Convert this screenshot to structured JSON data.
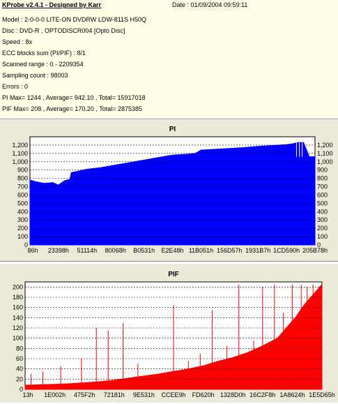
{
  "header": {
    "app_title": "KProbe v2.4.1 - Designed by Karr",
    "date_label": "Date : 01/09/2004 09:59:11",
    "lines": [
      "Model : 2-0-0-0 LITE-ON DVDRW LDW-811S   H50Q",
      "Disc : DVD-R , OPTODISCR004 [Opto Disc]",
      "Speed : 8x",
      "ECC blocks sum (PI/PIF) : 8/1",
      "Scanned range : 0 - 2209354",
      "Sampling count : 98003",
      "Errors : 0",
      "PI Max= 1244 , Average= 942.10 , Total= 15917018",
      "PIF Max= 208 , Average= 170.20 , Total= 2875385"
    ]
  },
  "chart_data": [
    {
      "type": "area",
      "title": "PI",
      "color": "#0000ff",
      "ylim": [
        0,
        1300
      ],
      "yticks": [
        0,
        100,
        200,
        300,
        400,
        500,
        600,
        700,
        800,
        900,
        1000,
        1100,
        1200
      ],
      "ytick_labels": [
        "0",
        "100",
        "200",
        "300",
        "400",
        "500",
        "600",
        "700",
        "800",
        "900",
        "1,000",
        "1,100",
        "1,200"
      ],
      "xticks": [
        "86h",
        "23398h",
        "51114h",
        "80068h",
        "B0531h",
        "E2E48h",
        "11B051h",
        "156D57h",
        "1931B7h",
        "1CD590h",
        "205B78h"
      ],
      "grid": true,
      "x": [
        0,
        0.02,
        0.05,
        0.08,
        0.1,
        0.12,
        0.14,
        0.145,
        0.16,
        0.2,
        0.25,
        0.3,
        0.35,
        0.4,
        0.45,
        0.5,
        0.55,
        0.58,
        0.6,
        0.65,
        0.7,
        0.75,
        0.8,
        0.85,
        0.9,
        0.92,
        0.94,
        0.96,
        0.98,
        1.0
      ],
      "values": [
        780,
        760,
        740,
        750,
        720,
        770,
        790,
        870,
        880,
        910,
        930,
        960,
        990,
        1020,
        1050,
        1080,
        1090,
        1100,
        1140,
        1150,
        1160,
        1170,
        1185,
        1195,
        1205,
        1215,
        1230,
        1230,
        1060,
        1060
      ]
    },
    {
      "type": "area",
      "title": "PIF",
      "color": "#ff0000",
      "ylim": [
        0,
        210
      ],
      "yticks": [
        0,
        20,
        40,
        60,
        80,
        100,
        120,
        140,
        160,
        180,
        200
      ],
      "ytick_labels": [
        "0",
        "20",
        "40",
        "60",
        "80",
        "100",
        "120",
        "140",
        "160",
        "180",
        "200"
      ],
      "xticks": [
        "13h",
        "1E002h",
        "475F2h",
        "72181h",
        "9E531h",
        "CCEE9h",
        "FD620h",
        "1328D0h",
        "16C2F8h",
        "1A8624h",
        "1E5D65h"
      ],
      "grid": true,
      "x": [
        0,
        0.05,
        0.1,
        0.15,
        0.2,
        0.25,
        0.3,
        0.35,
        0.4,
        0.45,
        0.5,
        0.55,
        0.6,
        0.65,
        0.7,
        0.75,
        0.8,
        0.85,
        0.88,
        0.91,
        0.94,
        0.97,
        1.0
      ],
      "values": [
        8,
        9,
        10,
        11,
        13,
        15,
        18,
        22,
        26,
        30,
        35,
        40,
        46,
        55,
        62,
        72,
        85,
        100,
        120,
        140,
        165,
        185,
        205
      ],
      "spikes_x": [
        0.02,
        0.06,
        0.12,
        0.19,
        0.24,
        0.28,
        0.33,
        0.38,
        0.5,
        0.55,
        0.59,
        0.63,
        0.68,
        0.72,
        0.77,
        0.8,
        0.84,
        0.87,
        0.9,
        0.93,
        0.95,
        0.97
      ],
      "spikes_v": [
        30,
        35,
        45,
        60,
        120,
        115,
        130,
        50,
        165,
        55,
        70,
        155,
        85,
        205,
        95,
        200,
        205,
        150,
        205,
        205,
        200,
        205
      ]
    }
  ]
}
